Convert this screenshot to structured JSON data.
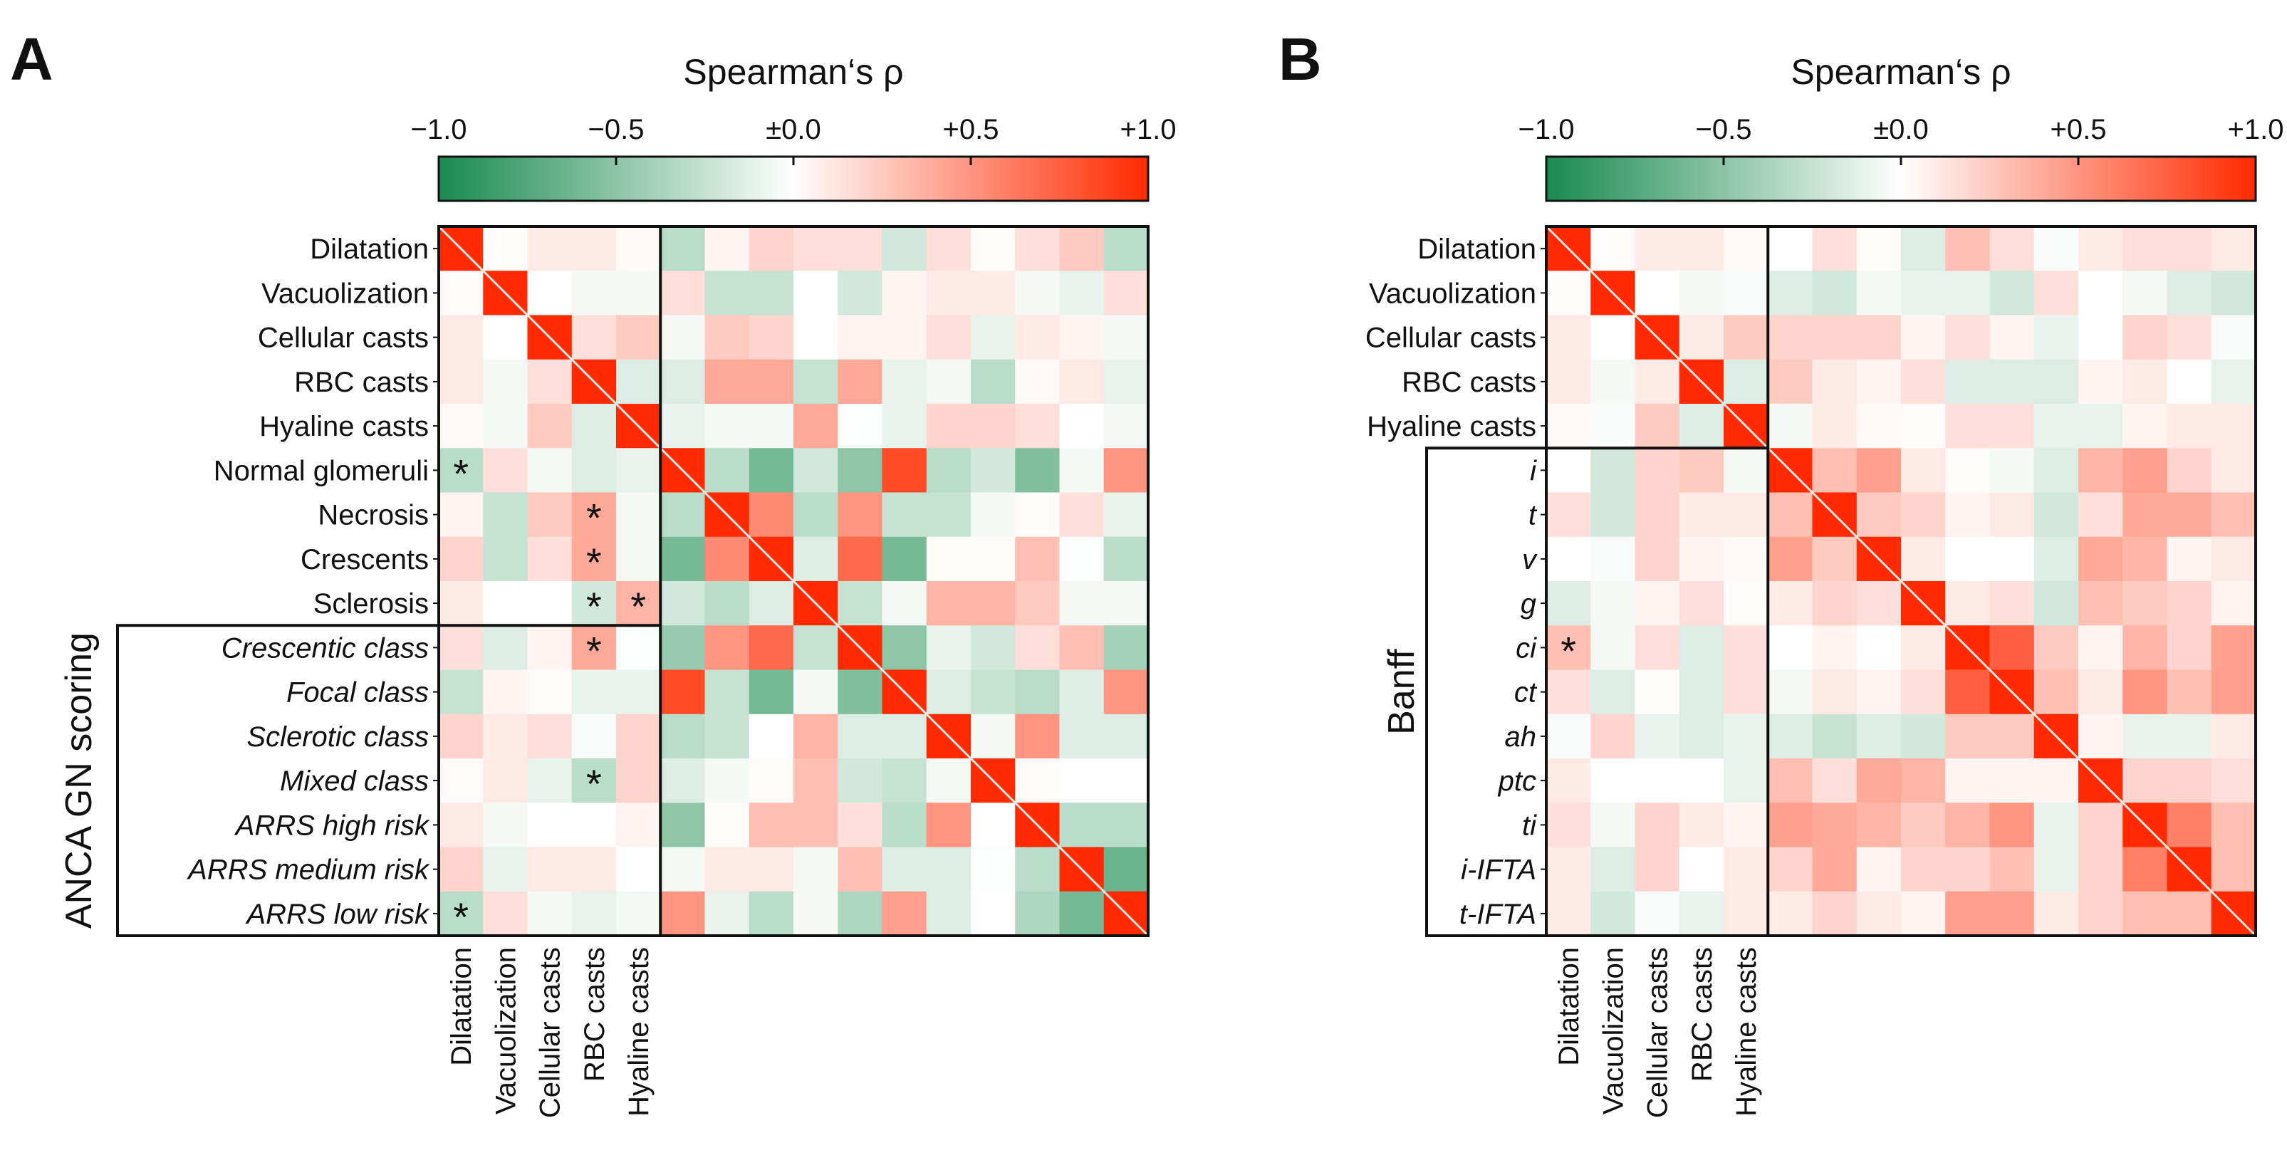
{
  "colors": {
    "negative": "#1a8a4f",
    "zero": "#ffffff",
    "positive": "#ff2a00"
  },
  "chart_data": [
    {
      "type": "heatmap",
      "panel_letter": "A",
      "title": "Spearman‘s ρ",
      "colorbar_ticks": [
        "−1.0",
        "−0.5",
        "±0.0",
        "+0.5",
        "+1.0"
      ],
      "colorbar_range": [
        -1,
        1
      ],
      "group_label": "ANCA GN scoring",
      "rows": [
        "Dilatation",
        "Vacuolization",
        "Cellular casts",
        "RBC casts",
        "Hyaline casts",
        "Normal glomeruli",
        "Necrosis",
        "Crescents",
        "Sclerosis",
        "Crescentic class",
        "Focal class",
        "Sclerotic class",
        "Mixed class",
        "ARRS high risk",
        "ARRS medium risk",
        "ARRS low risk"
      ],
      "italic_from_row": 9,
      "columns": [
        "Dilatation",
        "Vacuolization",
        "Cellular casts",
        "RBC casts",
        "Hyaline casts"
      ],
      "values": [
        [
          1,
          0.02,
          0.1,
          0.1,
          0.03,
          -0.3,
          0.05,
          0.2,
          0.15,
          0.15,
          -0.2,
          0.15,
          0.02,
          0.15,
          0.25,
          -0.3
        ],
        [
          0.02,
          1,
          0,
          -0.05,
          -0.05,
          0.15,
          -0.25,
          -0.25,
          0,
          -0.2,
          0.05,
          0.1,
          0.1,
          -0.05,
          -0.1,
          0.15
        ],
        [
          0.1,
          0,
          1,
          0.15,
          0.25,
          -0.05,
          0.25,
          0.2,
          0,
          0.05,
          0.05,
          0.15,
          -0.1,
          0.1,
          0.05,
          -0.05
        ],
        [
          0.1,
          -0.05,
          0.15,
          1,
          -0.15,
          -0.15,
          0.4,
          0.4,
          -0.25,
          0.4,
          -0.1,
          -0.05,
          -0.3,
          0.03,
          0.1,
          -0.1
        ],
        [
          0.03,
          -0.05,
          0.25,
          -0.15,
          1,
          -0.1,
          -0.05,
          -0.05,
          0.4,
          -0.02,
          -0.1,
          0.2,
          0.2,
          0.15,
          0,
          -0.05
        ],
        [
          -0.3,
          0.15,
          -0.05,
          -0.15,
          -0.1,
          1,
          -0.3,
          -0.6,
          -0.2,
          -0.5,
          0.85,
          -0.3,
          -0.2,
          -0.55,
          -0.05,
          0.5
        ],
        [
          0.05,
          -0.25,
          0.25,
          0.4,
          -0.05,
          -0.3,
          1,
          0.55,
          -0.3,
          0.5,
          -0.25,
          -0.25,
          -0.05,
          0.02,
          0.15,
          -0.1
        ],
        [
          0.2,
          -0.25,
          0.15,
          0.4,
          -0.05,
          -0.6,
          0.55,
          1,
          -0.15,
          0.7,
          -0.6,
          0.02,
          0.02,
          0.3,
          -0.02,
          -0.3
        ],
        [
          0.1,
          0,
          0,
          -0.2,
          0.35,
          -0.2,
          -0.3,
          -0.15,
          1,
          -0.25,
          -0.05,
          0.35,
          0.35,
          0.25,
          -0.05,
          -0.05
        ],
        [
          0.15,
          -0.15,
          0.05,
          0.4,
          -0.02,
          -0.45,
          0.5,
          0.7,
          -0.25,
          1,
          -0.5,
          -0.1,
          -0.2,
          0.15,
          0.3,
          -0.4
        ],
        [
          -0.25,
          0.05,
          0.02,
          -0.1,
          -0.1,
          0.85,
          -0.25,
          -0.6,
          -0.05,
          -0.55,
          1,
          -0.15,
          -0.25,
          -0.3,
          -0.15,
          0.5
        ],
        [
          0.2,
          0.1,
          0.15,
          -0.03,
          0.2,
          -0.3,
          -0.25,
          0,
          0.35,
          -0.15,
          -0.15,
          1,
          -0.05,
          0.5,
          -0.15,
          -0.15
        ],
        [
          0.02,
          0.1,
          -0.1,
          -0.3,
          0.2,
          -0.15,
          -0.05,
          0.02,
          0.3,
          -0.2,
          -0.25,
          -0.05,
          1,
          0.02,
          0,
          0
        ],
        [
          0.1,
          -0.05,
          0,
          0,
          0.05,
          -0.5,
          0.02,
          0.3,
          0.3,
          0.15,
          -0.3,
          0.5,
          0,
          1,
          -0.3,
          -0.3
        ],
        [
          0.2,
          -0.1,
          0.1,
          0.1,
          0,
          -0.05,
          0.1,
          0.1,
          -0.05,
          0.3,
          -0.15,
          -0.15,
          -0.02,
          -0.3,
          1,
          -0.65
        ],
        [
          -0.3,
          0.15,
          -0.05,
          -0.1,
          -0.05,
          0.5,
          -0.1,
          -0.3,
          -0.05,
          -0.35,
          0.45,
          -0.15,
          0,
          -0.35,
          -0.6,
          1
        ]
      ],
      "significant": [
        [
          5,
          0
        ],
        [
          6,
          3
        ],
        [
          7,
          3
        ],
        [
          8,
          3
        ],
        [
          8,
          4
        ],
        [
          9,
          3
        ],
        [
          12,
          3
        ],
        [
          15,
          0
        ]
      ],
      "significance_marker": "*"
    },
    {
      "type": "heatmap",
      "panel_letter": "B",
      "title": "Spearman‘s ρ",
      "colorbar_ticks": [
        "−1.0",
        "−0.5",
        "±0.0",
        "+0.5",
        "+1.0"
      ],
      "colorbar_range": [
        -1,
        1
      ],
      "group_label": "Banff",
      "rows": [
        "Dilatation",
        "Vacuolization",
        "Cellular casts",
        "RBC casts",
        "Hyaline casts",
        "i",
        "t",
        "v",
        "g",
        "ci",
        "ct",
        "ah",
        "ptc",
        "ti",
        "i-IFTA",
        "t-IFTA"
      ],
      "italic_from_row": 5,
      "columns": [
        "Dilatation",
        "Vacuolization",
        "Cellular casts",
        "RBC casts",
        "Hyaline casts"
      ],
      "values": [
        [
          1,
          0.02,
          0.1,
          0.1,
          0.03,
          0,
          0.15,
          0.02,
          -0.15,
          0.3,
          0.15,
          -0.03,
          0.1,
          0.15,
          0.15,
          0.1
        ],
        [
          0.02,
          1,
          0,
          -0.05,
          -0.03,
          -0.15,
          -0.2,
          -0.05,
          -0.1,
          -0.1,
          -0.2,
          0.15,
          0,
          -0.05,
          -0.15,
          -0.2
        ],
        [
          0.1,
          0,
          1,
          0.1,
          0.25,
          0.2,
          0.2,
          0.2,
          0.05,
          0.15,
          0.05,
          -0.1,
          0,
          0.2,
          0.15,
          -0.03
        ],
        [
          0.1,
          -0.05,
          0.1,
          1,
          -0.15,
          0.25,
          0.1,
          0.05,
          0.15,
          -0.15,
          -0.15,
          -0.15,
          0.05,
          0.1,
          0,
          -0.1
        ],
        [
          0.03,
          -0.03,
          0.25,
          -0.15,
          1,
          -0.05,
          0.1,
          0.03,
          0.02,
          0.15,
          0.15,
          -0.1,
          -0.1,
          0.05,
          0.1,
          0.1
        ],
        [
          0,
          -0.2,
          0.2,
          0.25,
          -0.05,
          1,
          0.3,
          0.45,
          0.1,
          0.02,
          -0.05,
          -0.15,
          0.35,
          0.45,
          0.2,
          0.1
        ],
        [
          0.15,
          -0.2,
          0.2,
          0.1,
          0.1,
          0.3,
          1,
          0.25,
          0.2,
          0.05,
          0.1,
          -0.2,
          0.15,
          0.4,
          0.4,
          0.3
        ],
        [
          0,
          -0.03,
          0.2,
          0.05,
          0.03,
          0.45,
          0.25,
          1,
          0.1,
          0,
          0,
          -0.15,
          0.4,
          0.35,
          0.05,
          0.1
        ],
        [
          -0.15,
          -0.05,
          0.05,
          0.15,
          0.02,
          0.1,
          0.2,
          0.15,
          1,
          0.1,
          0.15,
          -0.2,
          0.3,
          0.25,
          0.2,
          0.05
        ],
        [
          0.3,
          -0.05,
          0.15,
          -0.15,
          0.15,
          0,
          0.05,
          0,
          0.1,
          1,
          0.75,
          0.25,
          0.05,
          0.35,
          0.2,
          0.45
        ],
        [
          0.15,
          -0.15,
          0.02,
          -0.15,
          0.15,
          -0.05,
          0.1,
          0.05,
          0.15,
          0.75,
          1,
          0.3,
          0.1,
          0.5,
          0.3,
          0.45
        ],
        [
          -0.03,
          0.2,
          -0.1,
          -0.15,
          -0.1,
          -0.15,
          -0.25,
          -0.15,
          -0.2,
          0.25,
          0.25,
          1,
          0.05,
          -0.1,
          -0.1,
          0.1
        ],
        [
          0.1,
          0,
          0,
          0,
          -0.1,
          0.3,
          0.15,
          0.4,
          0.35,
          0.05,
          0.05,
          0.05,
          1,
          0.2,
          0.2,
          0.15
        ],
        [
          0.15,
          -0.05,
          0.2,
          0.1,
          0.05,
          0.45,
          0.4,
          0.35,
          0.25,
          0.35,
          0.5,
          -0.1,
          0.2,
          1,
          0.6,
          0.3
        ],
        [
          0.1,
          -0.15,
          0.2,
          0,
          0.1,
          0.2,
          0.4,
          0.05,
          0.2,
          0.2,
          0.3,
          -0.1,
          0.2,
          0.6,
          1,
          0.3
        ],
        [
          0.1,
          -0.2,
          -0.03,
          -0.1,
          0.1,
          0.1,
          0.2,
          0.1,
          0.05,
          0.45,
          0.45,
          0.1,
          0.2,
          0.3,
          0.3,
          1
        ]
      ],
      "significant": [
        [
          9,
          0
        ]
      ],
      "significance_marker": "*"
    }
  ]
}
